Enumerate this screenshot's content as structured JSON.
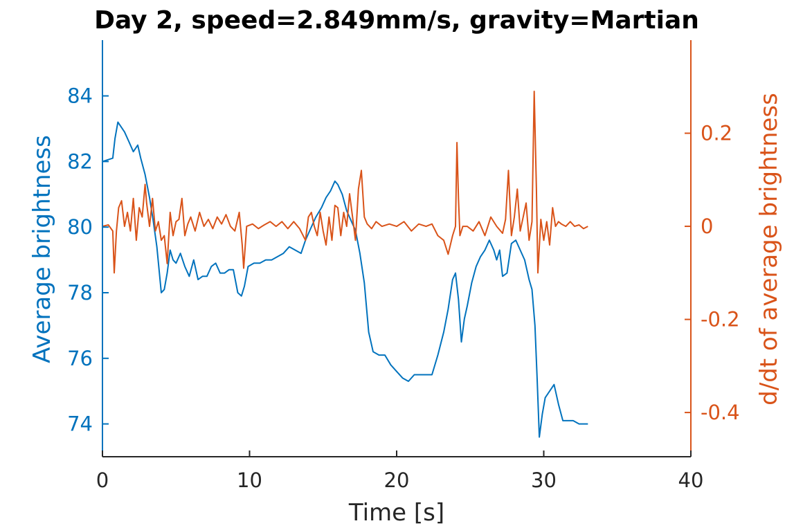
{
  "chart_data": {
    "type": "line",
    "title": "Day 2, speed=2.849mm/s, gravity=Martian",
    "xlabel": "Time [s]",
    "ylabel_left": "Average brightness",
    "ylabel_right": "d/dt of average brightness",
    "xlim": [
      0,
      40
    ],
    "ylim_left": [
      73,
      85.7
    ],
    "ylim_right": [
      -0.495,
      0.4
    ],
    "xticks": [
      0,
      10,
      20,
      30,
      40
    ],
    "yticks_left": [
      74,
      76,
      78,
      80,
      82,
      84
    ],
    "yticks_right": [
      -0.4,
      -0.2,
      0,
      0.2
    ],
    "ytick_labels_right": [
      "-0.4",
      "-0.2",
      "0",
      "0.2"
    ],
    "grid": false,
    "colors": {
      "left": "#0072BD",
      "right": "#D95319",
      "axis": "#262626"
    },
    "series": [
      {
        "axis": "left",
        "color": "#0072BD",
        "x": [
          0,
          0.7,
          0.85,
          1.05,
          1.2,
          1.5,
          1.8,
          2.1,
          2.4,
          2.6,
          2.9,
          3.2,
          3.45,
          3.7,
          3.85,
          4.0,
          4.2,
          4.4,
          4.6,
          4.8,
          5.0,
          5.3,
          5.6,
          5.9,
          6.2,
          6.5,
          6.8,
          7.1,
          7.4,
          7.7,
          8.0,
          8.3,
          8.6,
          8.9,
          9.2,
          9.45,
          9.65,
          9.9,
          10.3,
          10.7,
          11.1,
          11.5,
          11.9,
          12.3,
          12.7,
          13.1,
          13.5,
          13.8,
          14.1,
          14.5,
          14.9,
          15.2,
          15.5,
          15.8,
          16.0,
          16.3,
          16.6,
          16.9,
          17.2,
          17.5,
          17.8,
          18.1,
          18.4,
          18.8,
          19.2,
          19.6,
          20.0,
          20.4,
          20.8,
          21.2,
          21.6,
          22.0,
          22.4,
          22.8,
          23.2,
          23.5,
          23.8,
          24.0,
          24.2,
          24.4,
          24.6,
          24.8,
          25.1,
          25.4,
          25.7,
          26.0,
          26.3,
          26.6,
          26.8,
          27.0,
          27.2,
          27.5,
          27.8,
          28.1,
          28.4,
          28.7,
          29.0,
          29.2,
          29.4,
          29.55,
          29.7,
          29.9,
          30.1,
          30.4,
          30.7,
          31.0,
          31.3,
          31.6,
          32.0,
          32.4,
          32.8,
          33.0
        ],
        "y": [
          82.0,
          82.1,
          82.7,
          83.2,
          83.1,
          82.9,
          82.6,
          82.3,
          82.5,
          82.1,
          81.6,
          80.9,
          80.2,
          79.4,
          78.7,
          78.0,
          78.1,
          78.6,
          79.3,
          79.0,
          78.9,
          79.2,
          78.8,
          78.5,
          79.0,
          78.4,
          78.5,
          78.5,
          78.8,
          78.9,
          78.6,
          78.6,
          78.7,
          78.7,
          78.0,
          77.9,
          78.2,
          78.8,
          78.9,
          78.9,
          79.0,
          79.0,
          79.1,
          79.2,
          79.4,
          79.3,
          79.2,
          79.6,
          79.9,
          80.3,
          80.6,
          80.9,
          81.1,
          81.4,
          81.3,
          81.0,
          80.5,
          80.2,
          79.9,
          79.2,
          78.3,
          76.8,
          76.2,
          76.1,
          76.1,
          75.8,
          75.6,
          75.4,
          75.3,
          75.5,
          75.5,
          75.5,
          75.5,
          76.1,
          76.8,
          77.5,
          78.4,
          78.6,
          77.8,
          76.5,
          77.2,
          77.6,
          78.3,
          78.8,
          79.1,
          79.3,
          79.6,
          79.3,
          79.0,
          79.3,
          78.5,
          78.6,
          79.5,
          79.6,
          79.3,
          79.0,
          78.4,
          78.1,
          77.0,
          75.4,
          73.6,
          74.3,
          74.8,
          75.0,
          75.2,
          74.6,
          74.1,
          74.1,
          74.1,
          74.0,
          74.0,
          74.0
        ]
      },
      {
        "axis": "right",
        "color": "#D95319",
        "x": [
          0,
          0.4,
          0.7,
          0.8,
          0.95,
          1.1,
          1.3,
          1.5,
          1.7,
          1.9,
          2.1,
          2.3,
          2.5,
          2.7,
          2.9,
          3.0,
          3.2,
          3.4,
          3.6,
          3.8,
          4.0,
          4.2,
          4.4,
          4.6,
          4.8,
          5.0,
          5.2,
          5.4,
          5.6,
          5.8,
          6.0,
          6.3,
          6.6,
          6.9,
          7.2,
          7.5,
          7.8,
          8.1,
          8.4,
          8.7,
          9.0,
          9.3,
          9.5,
          9.6,
          9.8,
          10.2,
          10.6,
          11.0,
          11.4,
          11.8,
          12.2,
          12.6,
          13.0,
          13.4,
          13.8,
          14.0,
          14.2,
          14.4,
          14.6,
          14.8,
          15.0,
          15.2,
          15.4,
          15.6,
          15.8,
          16.0,
          16.2,
          16.4,
          16.6,
          16.8,
          17.0,
          17.2,
          17.4,
          17.6,
          17.8,
          18.0,
          18.3,
          18.6,
          19.0,
          19.5,
          20.0,
          20.5,
          21.0,
          21.5,
          22.0,
          22.4,
          22.8,
          23.2,
          23.5,
          23.8,
          24.0,
          24.1,
          24.2,
          24.3,
          24.5,
          24.8,
          25.2,
          25.6,
          26.0,
          26.4,
          26.8,
          27.2,
          27.4,
          27.6,
          27.8,
          28.0,
          28.2,
          28.4,
          28.6,
          28.8,
          29.0,
          29.2,
          29.35,
          29.5,
          29.6,
          29.8,
          30.0,
          30.2,
          30.4,
          30.6,
          30.8,
          31.0,
          31.2,
          31.5,
          31.8,
          32.1,
          32.4,
          32.7,
          33.0
        ],
        "y": [
          0.0,
          0.003,
          -0.01,
          -0.1,
          -0.01,
          0.04,
          0.055,
          0.0,
          0.03,
          -0.01,
          0.06,
          -0.03,
          0.04,
          0.02,
          0.09,
          0.05,
          0.0,
          0.06,
          -0.01,
          0.01,
          -0.03,
          -0.02,
          -0.08,
          0.03,
          -0.02,
          0.01,
          0.015,
          0.06,
          -0.02,
          0.005,
          0.02,
          -0.01,
          0.03,
          0.0,
          0.015,
          -0.005,
          0.02,
          0.005,
          0.025,
          0.0,
          -0.01,
          0.03,
          -0.04,
          -0.09,
          0.0,
          0.005,
          -0.005,
          0.003,
          0.01,
          0.0,
          0.01,
          -0.005,
          0.01,
          -0.005,
          -0.03,
          0.02,
          0.03,
          0.0,
          -0.02,
          0.03,
          -0.01,
          -0.04,
          0.02,
          -0.03,
          0.045,
          0.04,
          -0.02,
          0.03,
          0.0,
          0.07,
          0.02,
          -0.03,
          0.08,
          0.12,
          0.02,
          0.005,
          -0.005,
          0.01,
          0.0,
          0.005,
          0.0,
          0.01,
          -0.01,
          0.005,
          0.0,
          0.005,
          -0.02,
          -0.03,
          -0.06,
          -0.02,
          0.0,
          0.18,
          0.06,
          -0.02,
          0.0,
          0.0,
          -0.01,
          0.01,
          -0.02,
          0.02,
          0.0,
          -0.015,
          0.015,
          0.12,
          -0.02,
          0.02,
          0.08,
          -0.01,
          0.02,
          0.05,
          -0.03,
          0.01,
          0.29,
          0.08,
          -0.1,
          0.015,
          -0.03,
          0.01,
          -0.04,
          0.04,
          0.0,
          0.01,
          0.005,
          0.0,
          0.01,
          0.0,
          0.003,
          -0.005,
          0.0
        ]
      }
    ]
  }
}
